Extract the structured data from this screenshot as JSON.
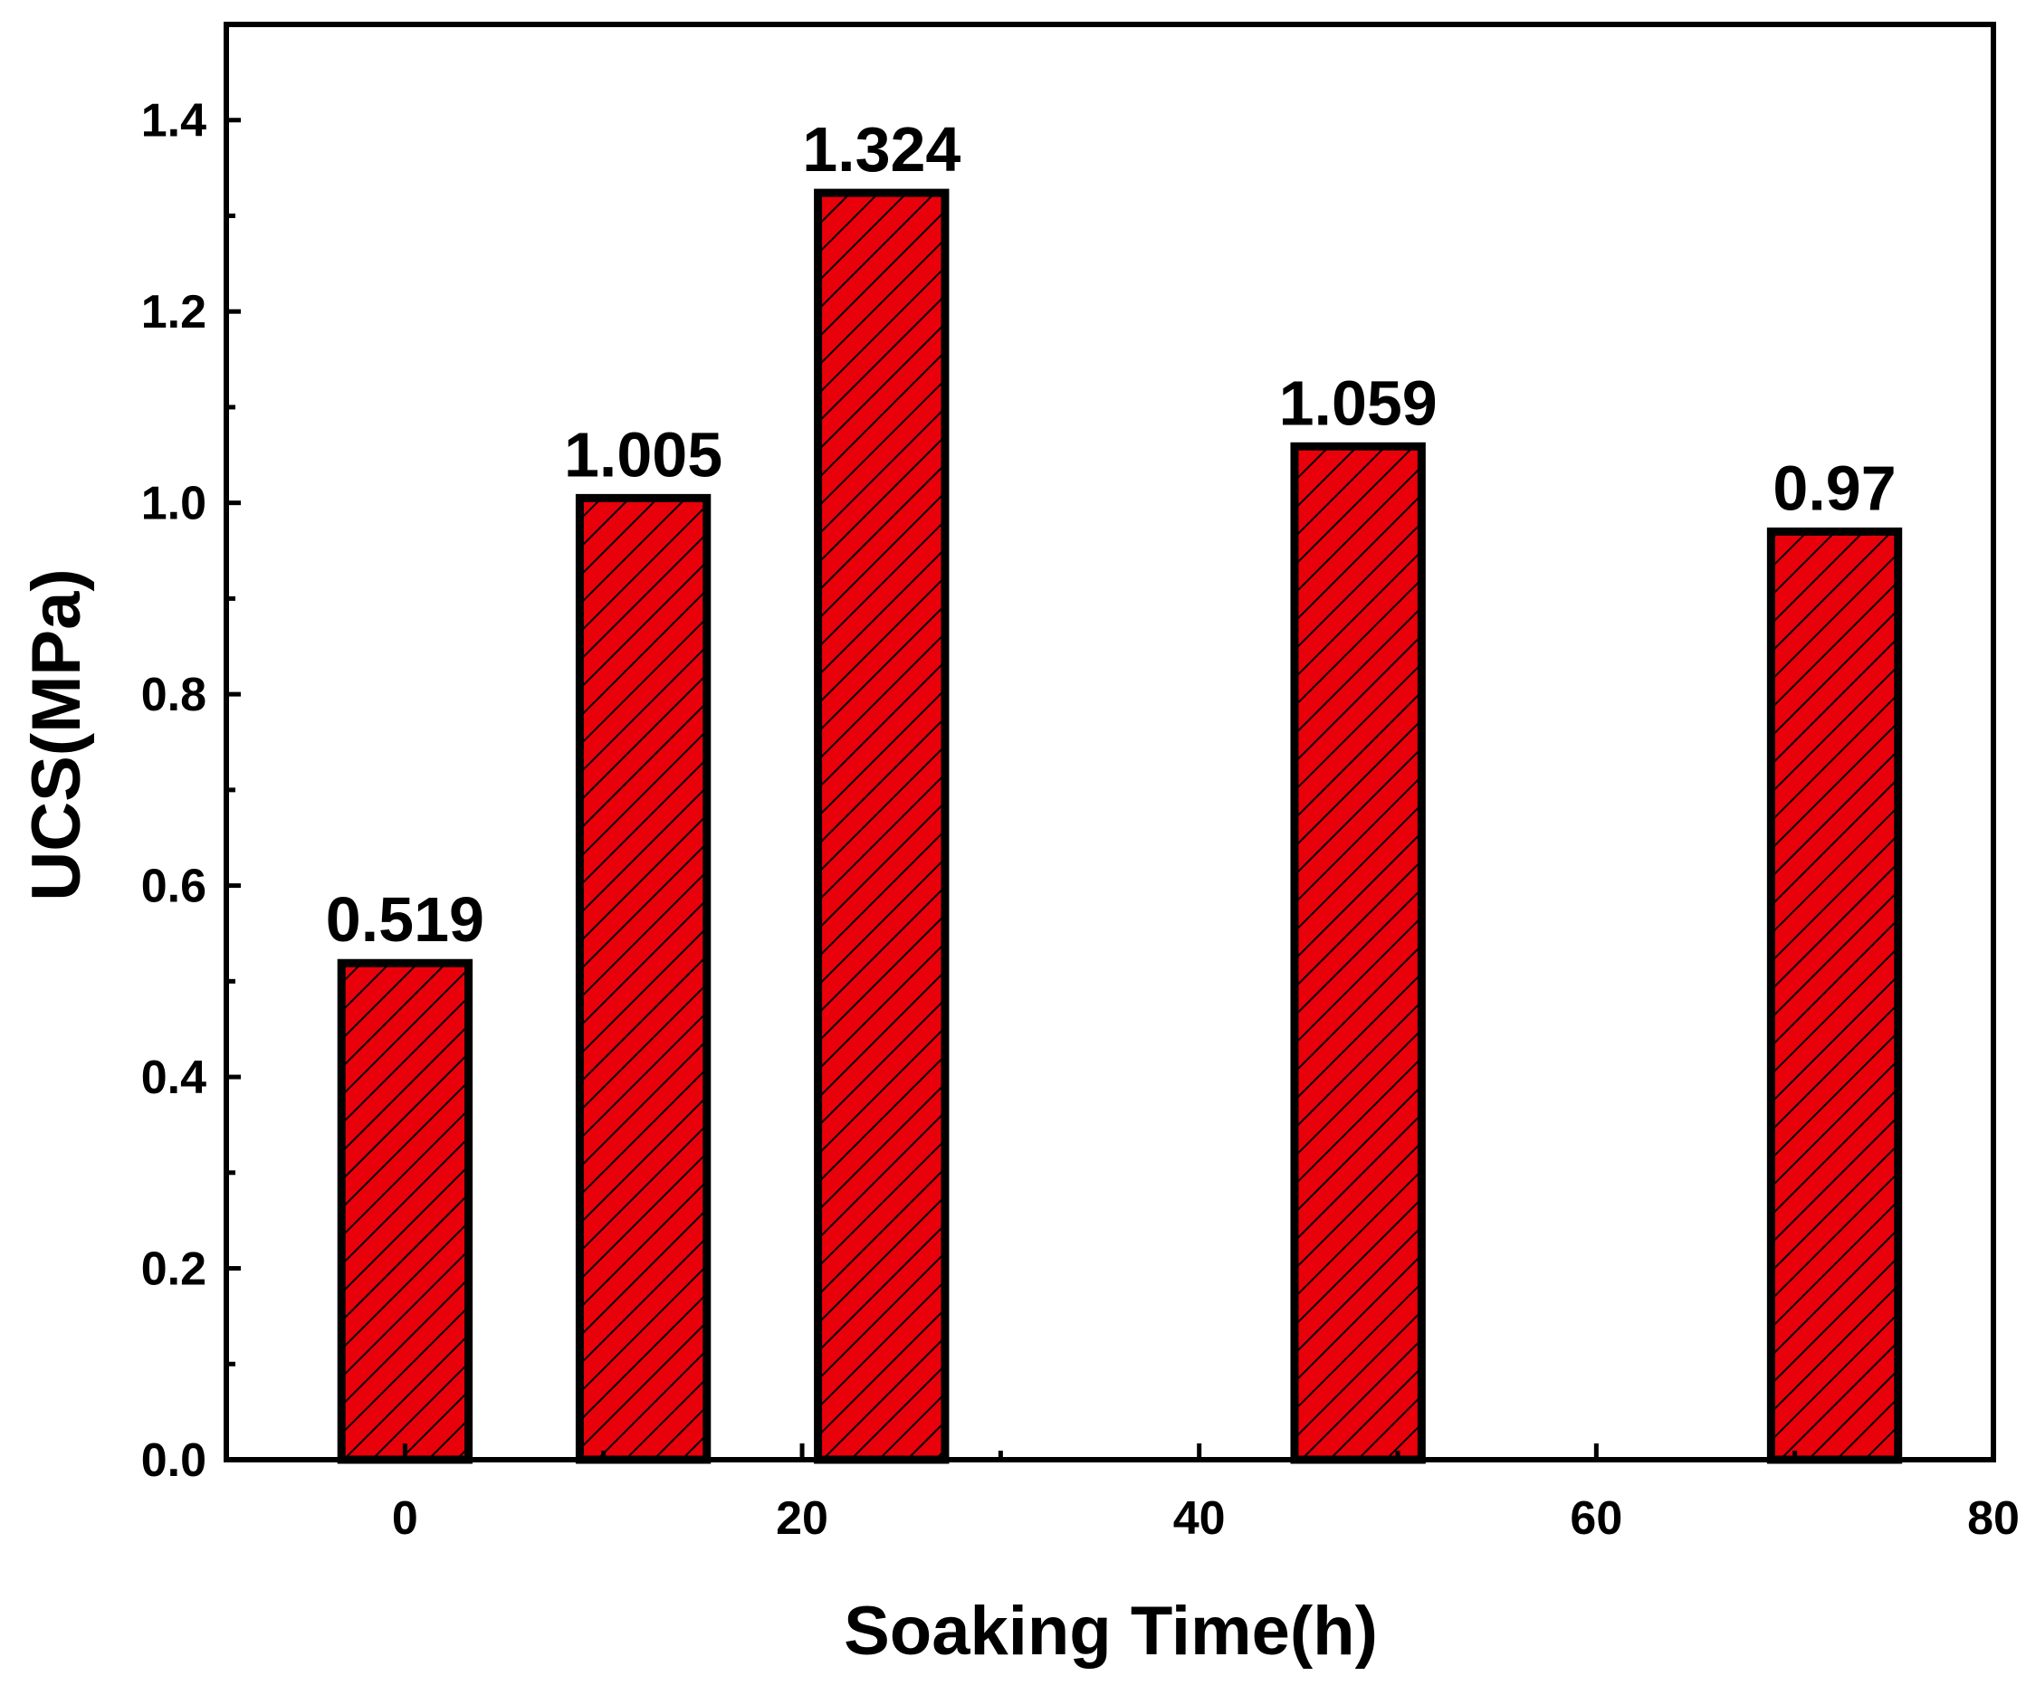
{
  "chart_data": {
    "type": "bar",
    "title": "",
    "xlabel": "Soaking Time(h)",
    "ylabel": "UCS(MPa)",
    "x": [
      0,
      12,
      24,
      48,
      72
    ],
    "values": [
      0.519,
      1.005,
      1.324,
      1.059,
      0.97
    ],
    "data_labels": [
      "0.519",
      "1.005",
      "1.324",
      "1.059",
      "0.97"
    ],
    "xlim": [
      -9,
      80
    ],
    "ylim": [
      0,
      1.5
    ],
    "xticks": [
      "0",
      "20",
      "40",
      "60",
      "80"
    ],
    "xtick_values": [
      0,
      20,
      40,
      60,
      80
    ],
    "yticks": [
      "0.0",
      "0.2",
      "0.4",
      "0.6",
      "0.8",
      "1.0",
      "1.2",
      "1.4"
    ],
    "ytick_values": [
      0,
      0.2,
      0.4,
      0.6,
      0.8,
      1.0,
      1.2,
      1.4
    ],
    "bar_width_hours": 6.4,
    "bar_color": "#e8000b",
    "hatch_color": "#000000",
    "grid": false,
    "legend": "none"
  }
}
